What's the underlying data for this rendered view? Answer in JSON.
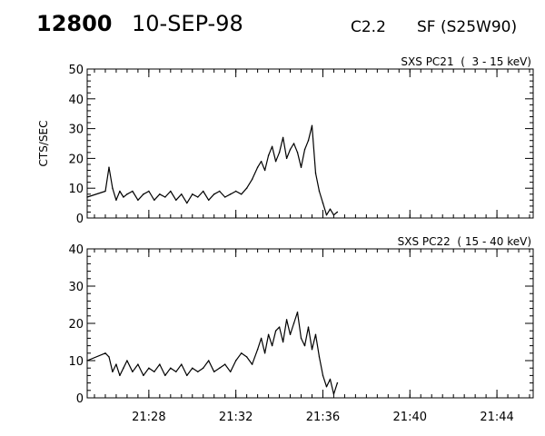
{
  "header": {
    "event_number": "12800",
    "date": "10-SEP-98",
    "goes_class": "C2.2",
    "flare_location": "SF (S25W90)"
  },
  "chart_data": [
    {
      "type": "line",
      "title": "SXS PC21  (  3 - 15 keV)",
      "xlabel": "",
      "ylabel": "CTS/SEC",
      "xlim": [
        "21:25:10",
        "21:45:40"
      ],
      "ylim": [
        0,
        50
      ],
      "yticks": [
        0,
        10,
        20,
        30,
        40,
        50
      ],
      "xticks": [
        "21:28",
        "21:32",
        "21:36",
        "21:40",
        "21:44"
      ],
      "show_x_tick_labels": false,
      "grid": false,
      "x": [
        "21:25:10",
        "21:26:00",
        "21:26:10",
        "21:26:20",
        "21:26:30",
        "21:26:40",
        "21:26:50",
        "21:27:00",
        "21:27:15",
        "21:27:30",
        "21:27:45",
        "21:28:00",
        "21:28:15",
        "21:28:30",
        "21:28:45",
        "21:29:00",
        "21:29:15",
        "21:29:30",
        "21:29:45",
        "21:30:00",
        "21:30:15",
        "21:30:30",
        "21:30:45",
        "21:31:00",
        "21:31:15",
        "21:31:30",
        "21:31:45",
        "21:32:00",
        "21:32:15",
        "21:32:30",
        "21:32:45",
        "21:33:00",
        "21:33:10",
        "21:33:20",
        "21:33:30",
        "21:33:40",
        "21:33:50",
        "21:34:00",
        "21:34:10",
        "21:34:20",
        "21:34:30",
        "21:34:40",
        "21:34:50",
        "21:35:00",
        "21:35:10",
        "21:35:20",
        "21:35:30",
        "21:35:40",
        "21:35:50",
        "21:36:00",
        "21:36:10",
        "21:36:20",
        "21:36:30",
        "21:36:40"
      ],
      "series": [
        {
          "values": [
            7,
            9,
            17,
            10,
            6,
            9,
            7,
            8,
            9,
            6,
            8,
            9,
            6,
            8,
            7,
            9,
            6,
            8,
            5,
            8,
            7,
            9,
            6,
            8,
            9,
            7,
            8,
            9,
            8,
            10,
            13,
            17,
            19,
            16,
            21,
            24,
            19,
            22,
            27,
            20,
            23,
            25,
            22,
            17,
            23,
            26,
            31,
            15,
            9,
            5,
            1,
            3,
            1,
            2
          ]
        }
      ]
    },
    {
      "type": "line",
      "title": "SXS PC22  ( 15 - 40 keV)",
      "xlabel": "",
      "ylabel": "",
      "xlim": [
        "21:25:10",
        "21:45:40"
      ],
      "ylim": [
        0,
        40
      ],
      "yticks": [
        0,
        10,
        20,
        30,
        40
      ],
      "xticks": [
        "21:28",
        "21:32",
        "21:36",
        "21:40",
        "21:44"
      ],
      "show_x_tick_labels": true,
      "grid": false,
      "x": [
        "21:25:10",
        "21:26:00",
        "21:26:10",
        "21:26:20",
        "21:26:30",
        "21:26:40",
        "21:26:50",
        "21:27:00",
        "21:27:15",
        "21:27:30",
        "21:27:45",
        "21:28:00",
        "21:28:15",
        "21:28:30",
        "21:28:45",
        "21:29:00",
        "21:29:15",
        "21:29:30",
        "21:29:45",
        "21:30:00",
        "21:30:15",
        "21:30:30",
        "21:30:45",
        "21:31:00",
        "21:31:15",
        "21:31:30",
        "21:31:45",
        "21:32:00",
        "21:32:15",
        "21:32:30",
        "21:32:45",
        "21:33:00",
        "21:33:10",
        "21:33:20",
        "21:33:30",
        "21:33:40",
        "21:33:50",
        "21:34:00",
        "21:34:10",
        "21:34:20",
        "21:34:30",
        "21:34:40",
        "21:34:50",
        "21:35:00",
        "21:35:10",
        "21:35:20",
        "21:35:30",
        "21:35:40",
        "21:35:50",
        "21:36:00",
        "21:36:10",
        "21:36:20",
        "21:36:30",
        "21:36:40"
      ],
      "series": [
        {
          "values": [
            10,
            12,
            11,
            7,
            9,
            6,
            8,
            10,
            7,
            9,
            6,
            8,
            7,
            9,
            6,
            8,
            7,
            9,
            6,
            8,
            7,
            8,
            10,
            7,
            8,
            9,
            7,
            10,
            12,
            11,
            9,
            13,
            16,
            12,
            17,
            14,
            18,
            19,
            15,
            21,
            17,
            20,
            23,
            16,
            14,
            19,
            13,
            17,
            11,
            6,
            3,
            5,
            1,
            4
          ]
        }
      ]
    }
  ]
}
